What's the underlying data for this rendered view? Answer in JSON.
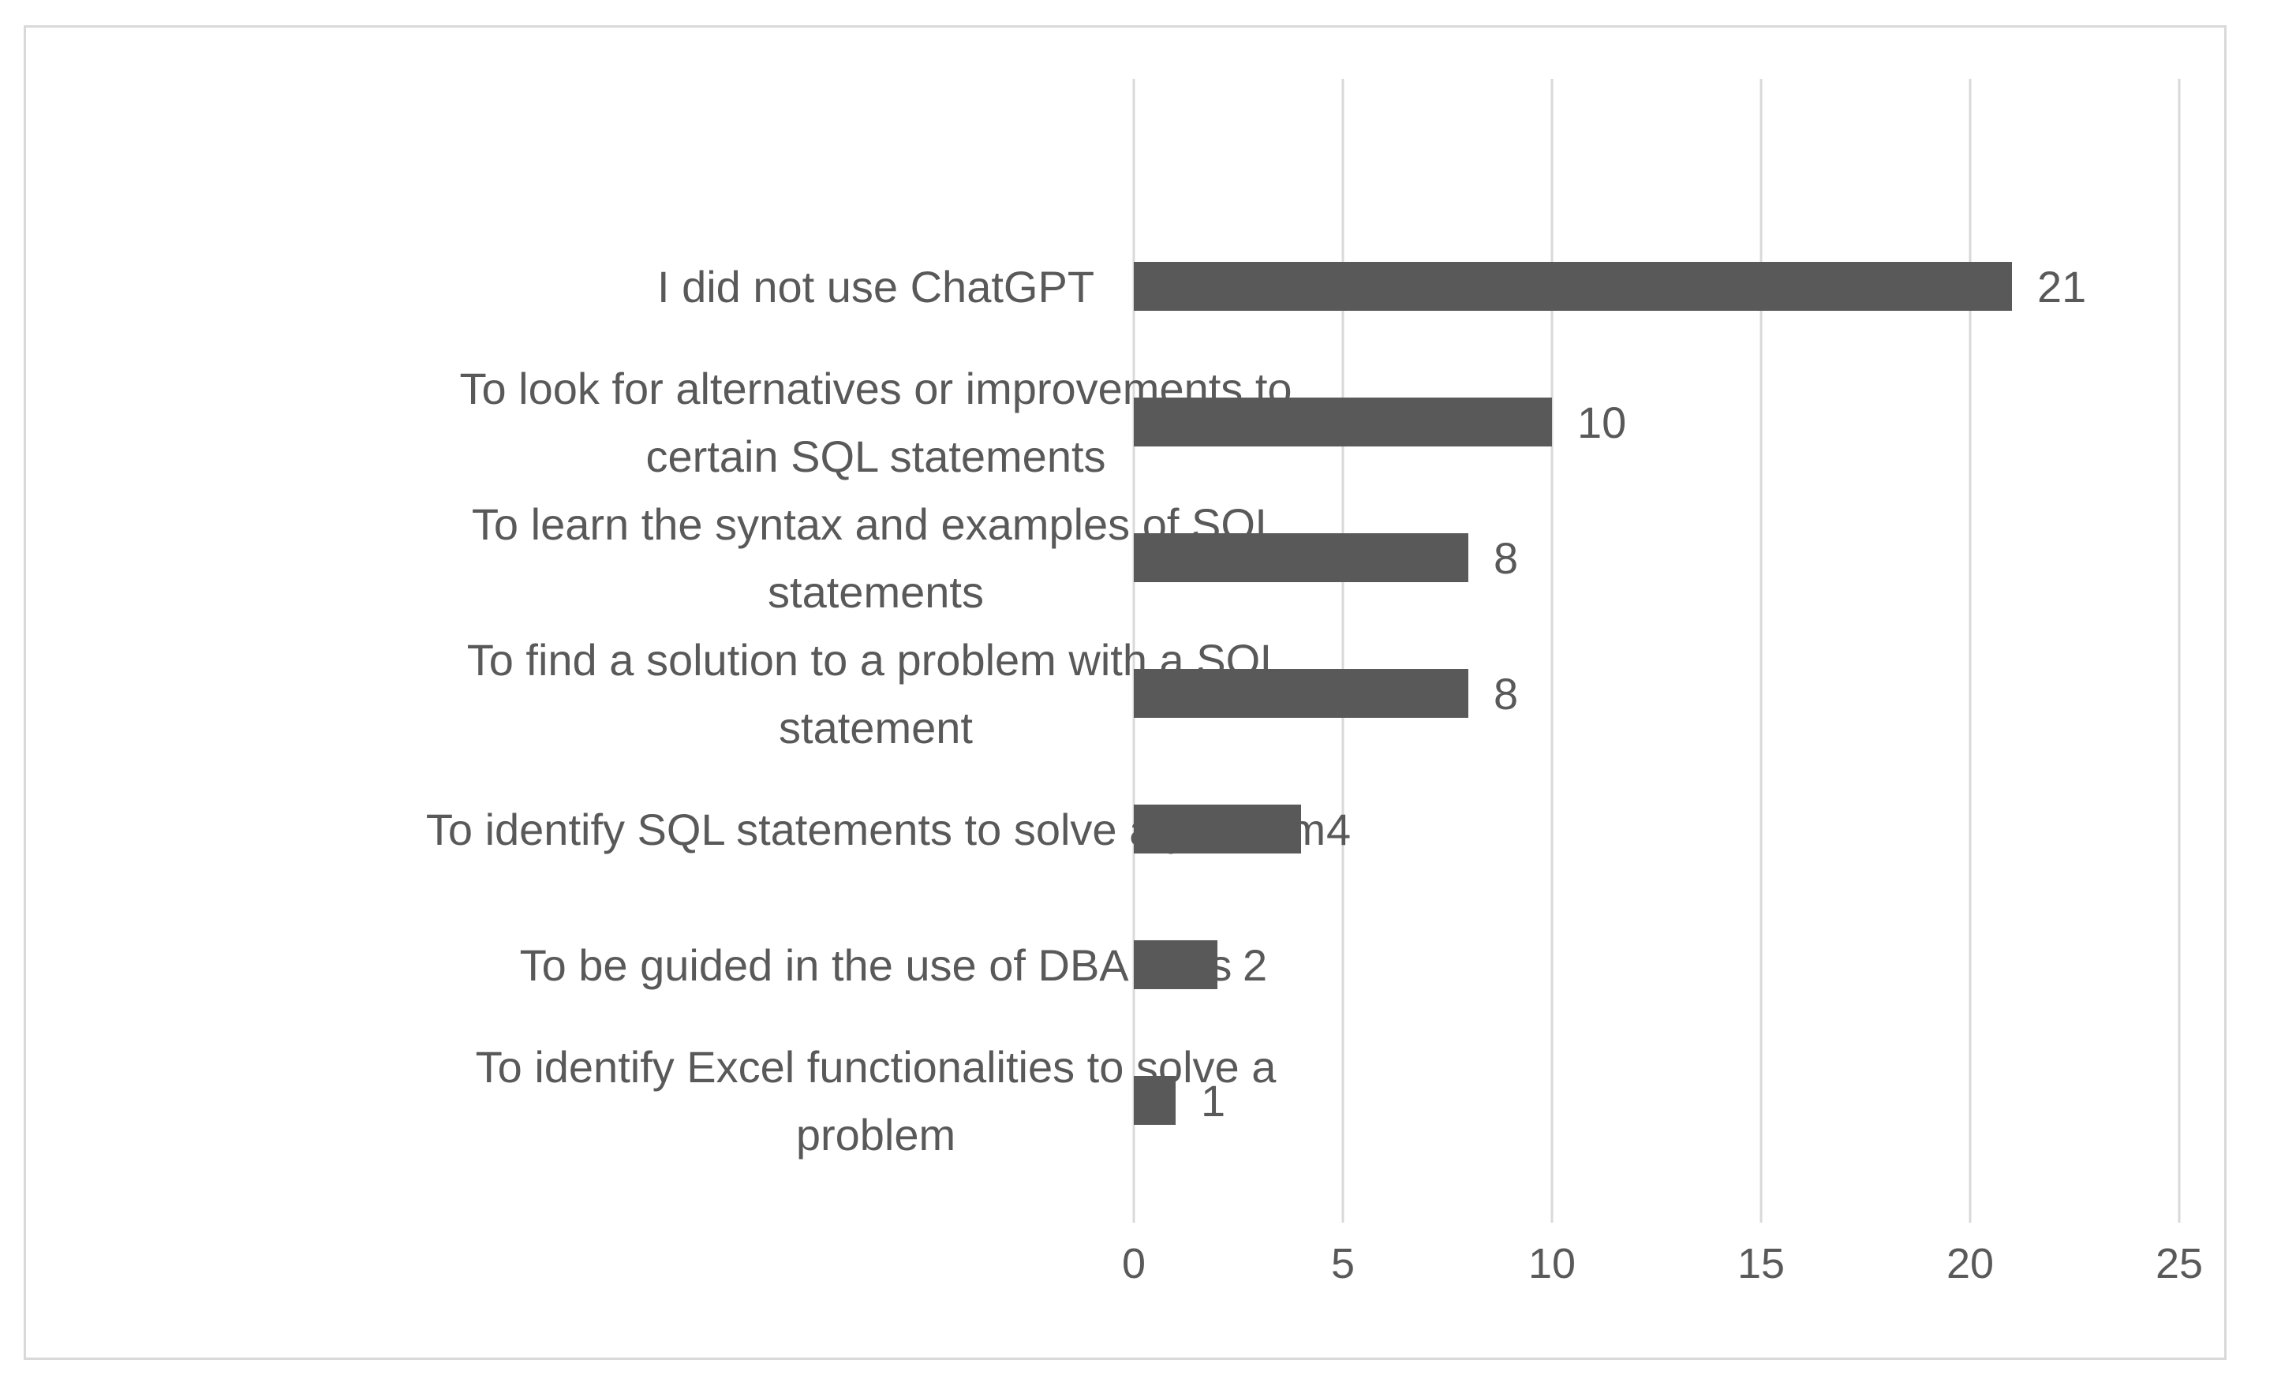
{
  "chart_data": {
    "type": "bar",
    "orientation": "horizontal",
    "categories": [
      [
        "I did not use ChatGPT"
      ],
      [
        "To look for alternatives or improvements to",
        "certain SQL statements"
      ],
      [
        "To learn the syntax and examples of SQL",
        "statements"
      ],
      [
        "To find a solution to a problem with a SQL",
        "statement"
      ],
      [
        "To identify SQL statements to solve a problem"
      ],
      [
        "To be guided in the use of DBA tools"
      ],
      [
        "To identify Excel functionalities to solve a",
        "problem"
      ]
    ],
    "values": [
      21,
      10,
      8,
      8,
      4,
      2,
      1
    ],
    "data_labels": [
      "21",
      "10",
      "8",
      "8",
      "4",
      "2",
      "1"
    ],
    "xticks": [
      0,
      5,
      10,
      15,
      20,
      25
    ],
    "xlim": [
      0,
      25
    ],
    "grid": "vertical",
    "legend": "none",
    "colors": {
      "bar": "#595959",
      "grid": "#d9d9d9",
      "text": "#595959"
    }
  }
}
